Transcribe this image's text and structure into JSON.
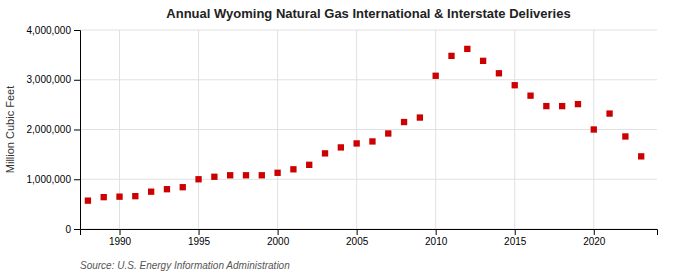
{
  "chart_data": {
    "type": "scatter",
    "title": "Annual Wyoming Natural Gas International & Interstate Deliveries",
    "ylabel": "Million Cubic Feet",
    "annotations": [
      "Source: U.S. Energy Information Administration"
    ],
    "x": [
      1988,
      1989,
      1990,
      1991,
      1992,
      1993,
      1994,
      1995,
      1996,
      1997,
      1998,
      1999,
      2000,
      2001,
      2002,
      2003,
      2004,
      2005,
      2006,
      2007,
      2008,
      2009,
      2010,
      2011,
      2012,
      2013,
      2014,
      2015,
      2016,
      2017,
      2018,
      2019,
      2020,
      2021,
      2022,
      2023
    ],
    "values": [
      570000,
      640000,
      650000,
      660000,
      750000,
      800000,
      840000,
      1000000,
      1050000,
      1080000,
      1080000,
      1080000,
      1130000,
      1200000,
      1290000,
      1520000,
      1640000,
      1720000,
      1760000,
      1920000,
      2150000,
      2240000,
      3080000,
      3480000,
      3620000,
      3380000,
      3130000,
      2890000,
      2680000,
      2470000,
      2470000,
      2510000,
      2000000,
      2320000,
      1860000,
      1460000
    ],
    "color": "#cc0000",
    "marker": "square",
    "xlim": [
      1987.5,
      2024
    ],
    "xticks": [
      1990,
      1995,
      2000,
      2005,
      2010,
      2015,
      2020
    ],
    "ylim": [
      0,
      4000000
    ],
    "yticks": [
      0,
      {
        "value": 1000000,
        "label": "1,000,000"
      },
      {
        "value": 2000000,
        "label": "2,000,000"
      },
      {
        "value": 3000000,
        "label": "3,000,000"
      },
      {
        "value": 4000000,
        "label": "4,000,000"
      }
    ],
    "grid": true
  }
}
